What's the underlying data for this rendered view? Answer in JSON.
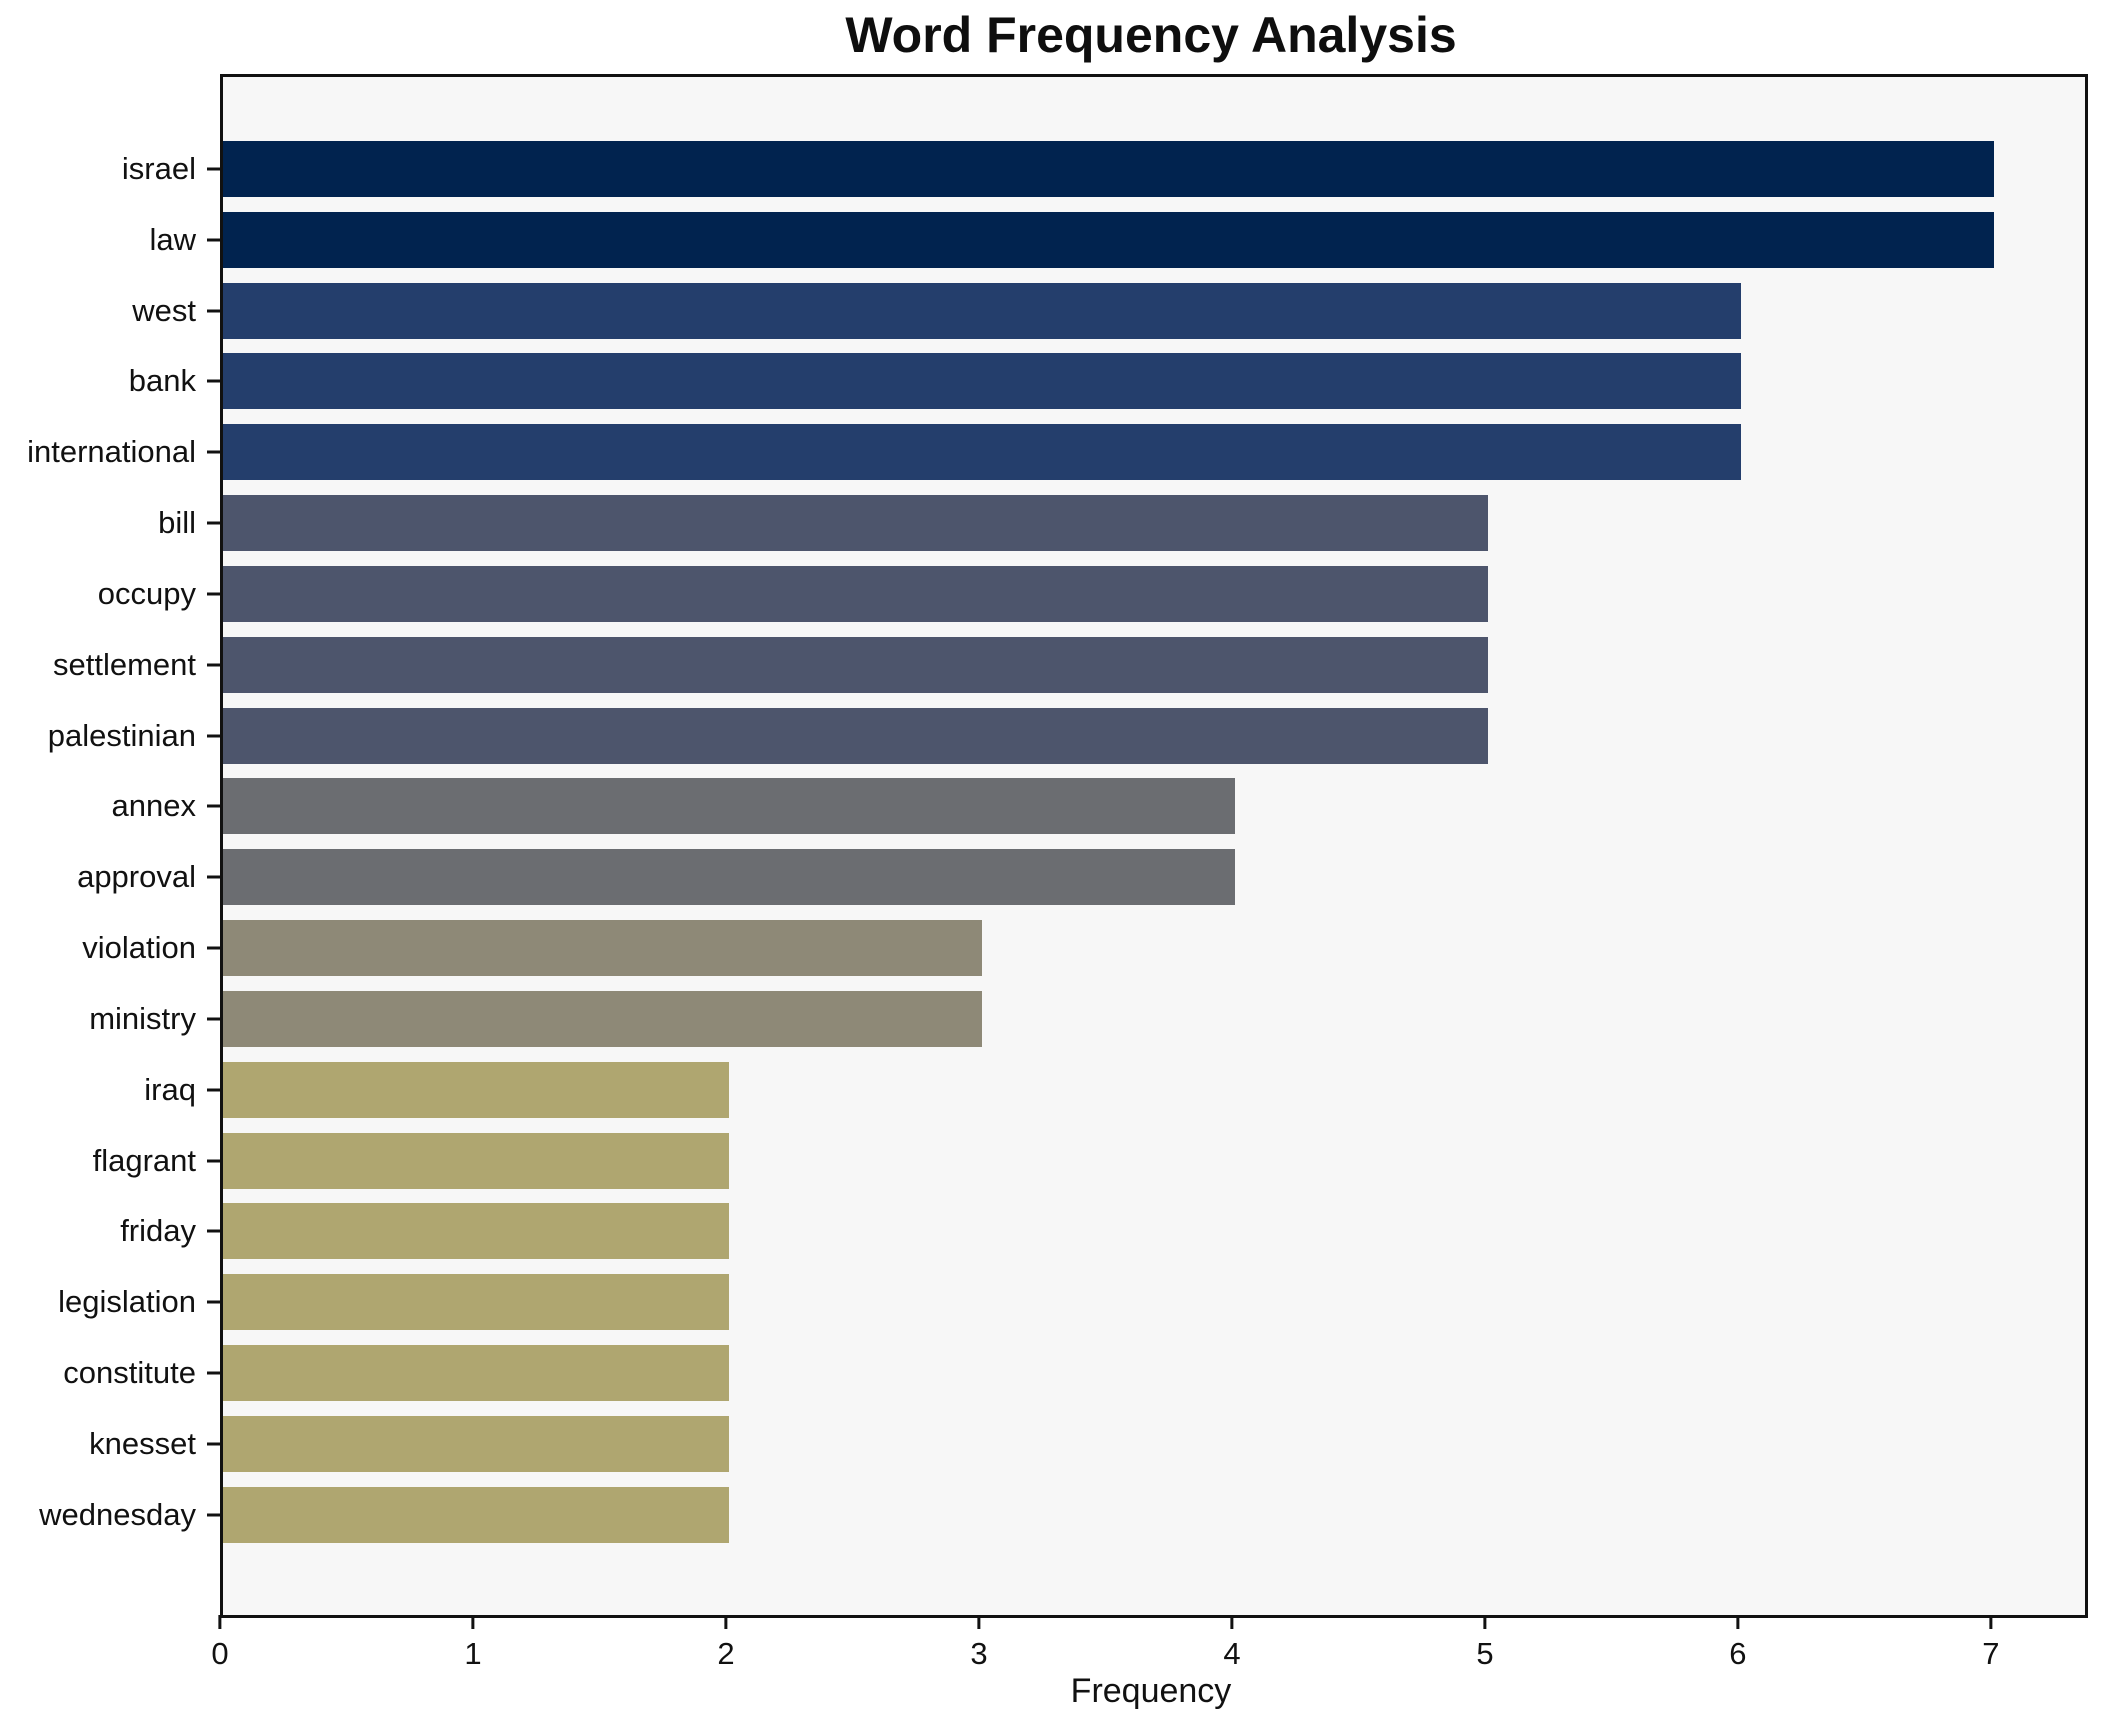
{
  "title": "Word Frequency Analysis",
  "axis": {
    "xlabel": "Frequency",
    "x_ticks": [
      "0",
      "1",
      "2",
      "3",
      "4",
      "5",
      "6",
      "7"
    ]
  },
  "colors": {
    "figure_bg": "#ffffff",
    "plot_bg": "#f7f7f7",
    "frame": "#111111",
    "text": "#111111",
    "value7": "#01234f",
    "value6": "#243e6c",
    "value5": "#4d556c",
    "value4": "#6b6d71",
    "value3": "#8e8977",
    "value2": "#afa670"
  },
  "chart_data": {
    "type": "bar",
    "orientation": "horizontal",
    "title": "Word Frequency Analysis",
    "xlabel": "Frequency",
    "ylabel": "",
    "grid": false,
    "legend": null,
    "xlim": [
      0,
      7.36
    ],
    "x_tick_values": [
      0,
      1,
      2,
      3,
      4,
      5,
      6,
      7
    ],
    "categories": [
      "israel",
      "law",
      "west",
      "bank",
      "international",
      "bill",
      "occupy",
      "settlement",
      "palestinian",
      "annex",
      "approval",
      "violation",
      "ministry",
      "iraq",
      "flagrant",
      "friday",
      "legislation",
      "constitute",
      "knesset",
      "wednesday"
    ],
    "values": [
      7,
      7,
      6,
      6,
      6,
      5,
      5,
      5,
      5,
      4,
      4,
      3,
      3,
      2,
      2,
      2,
      2,
      2,
      2,
      2
    ],
    "bar_colors": [
      "#01234f",
      "#01234f",
      "#243e6c",
      "#243e6c",
      "#243e6c",
      "#4d556c",
      "#4d556c",
      "#4d556c",
      "#4d556c",
      "#6b6d71",
      "#6b6d71",
      "#8e8977",
      "#8e8977",
      "#afa670",
      "#afa670",
      "#afa670",
      "#afa670",
      "#afa670",
      "#afa670",
      "#afa670"
    ]
  }
}
